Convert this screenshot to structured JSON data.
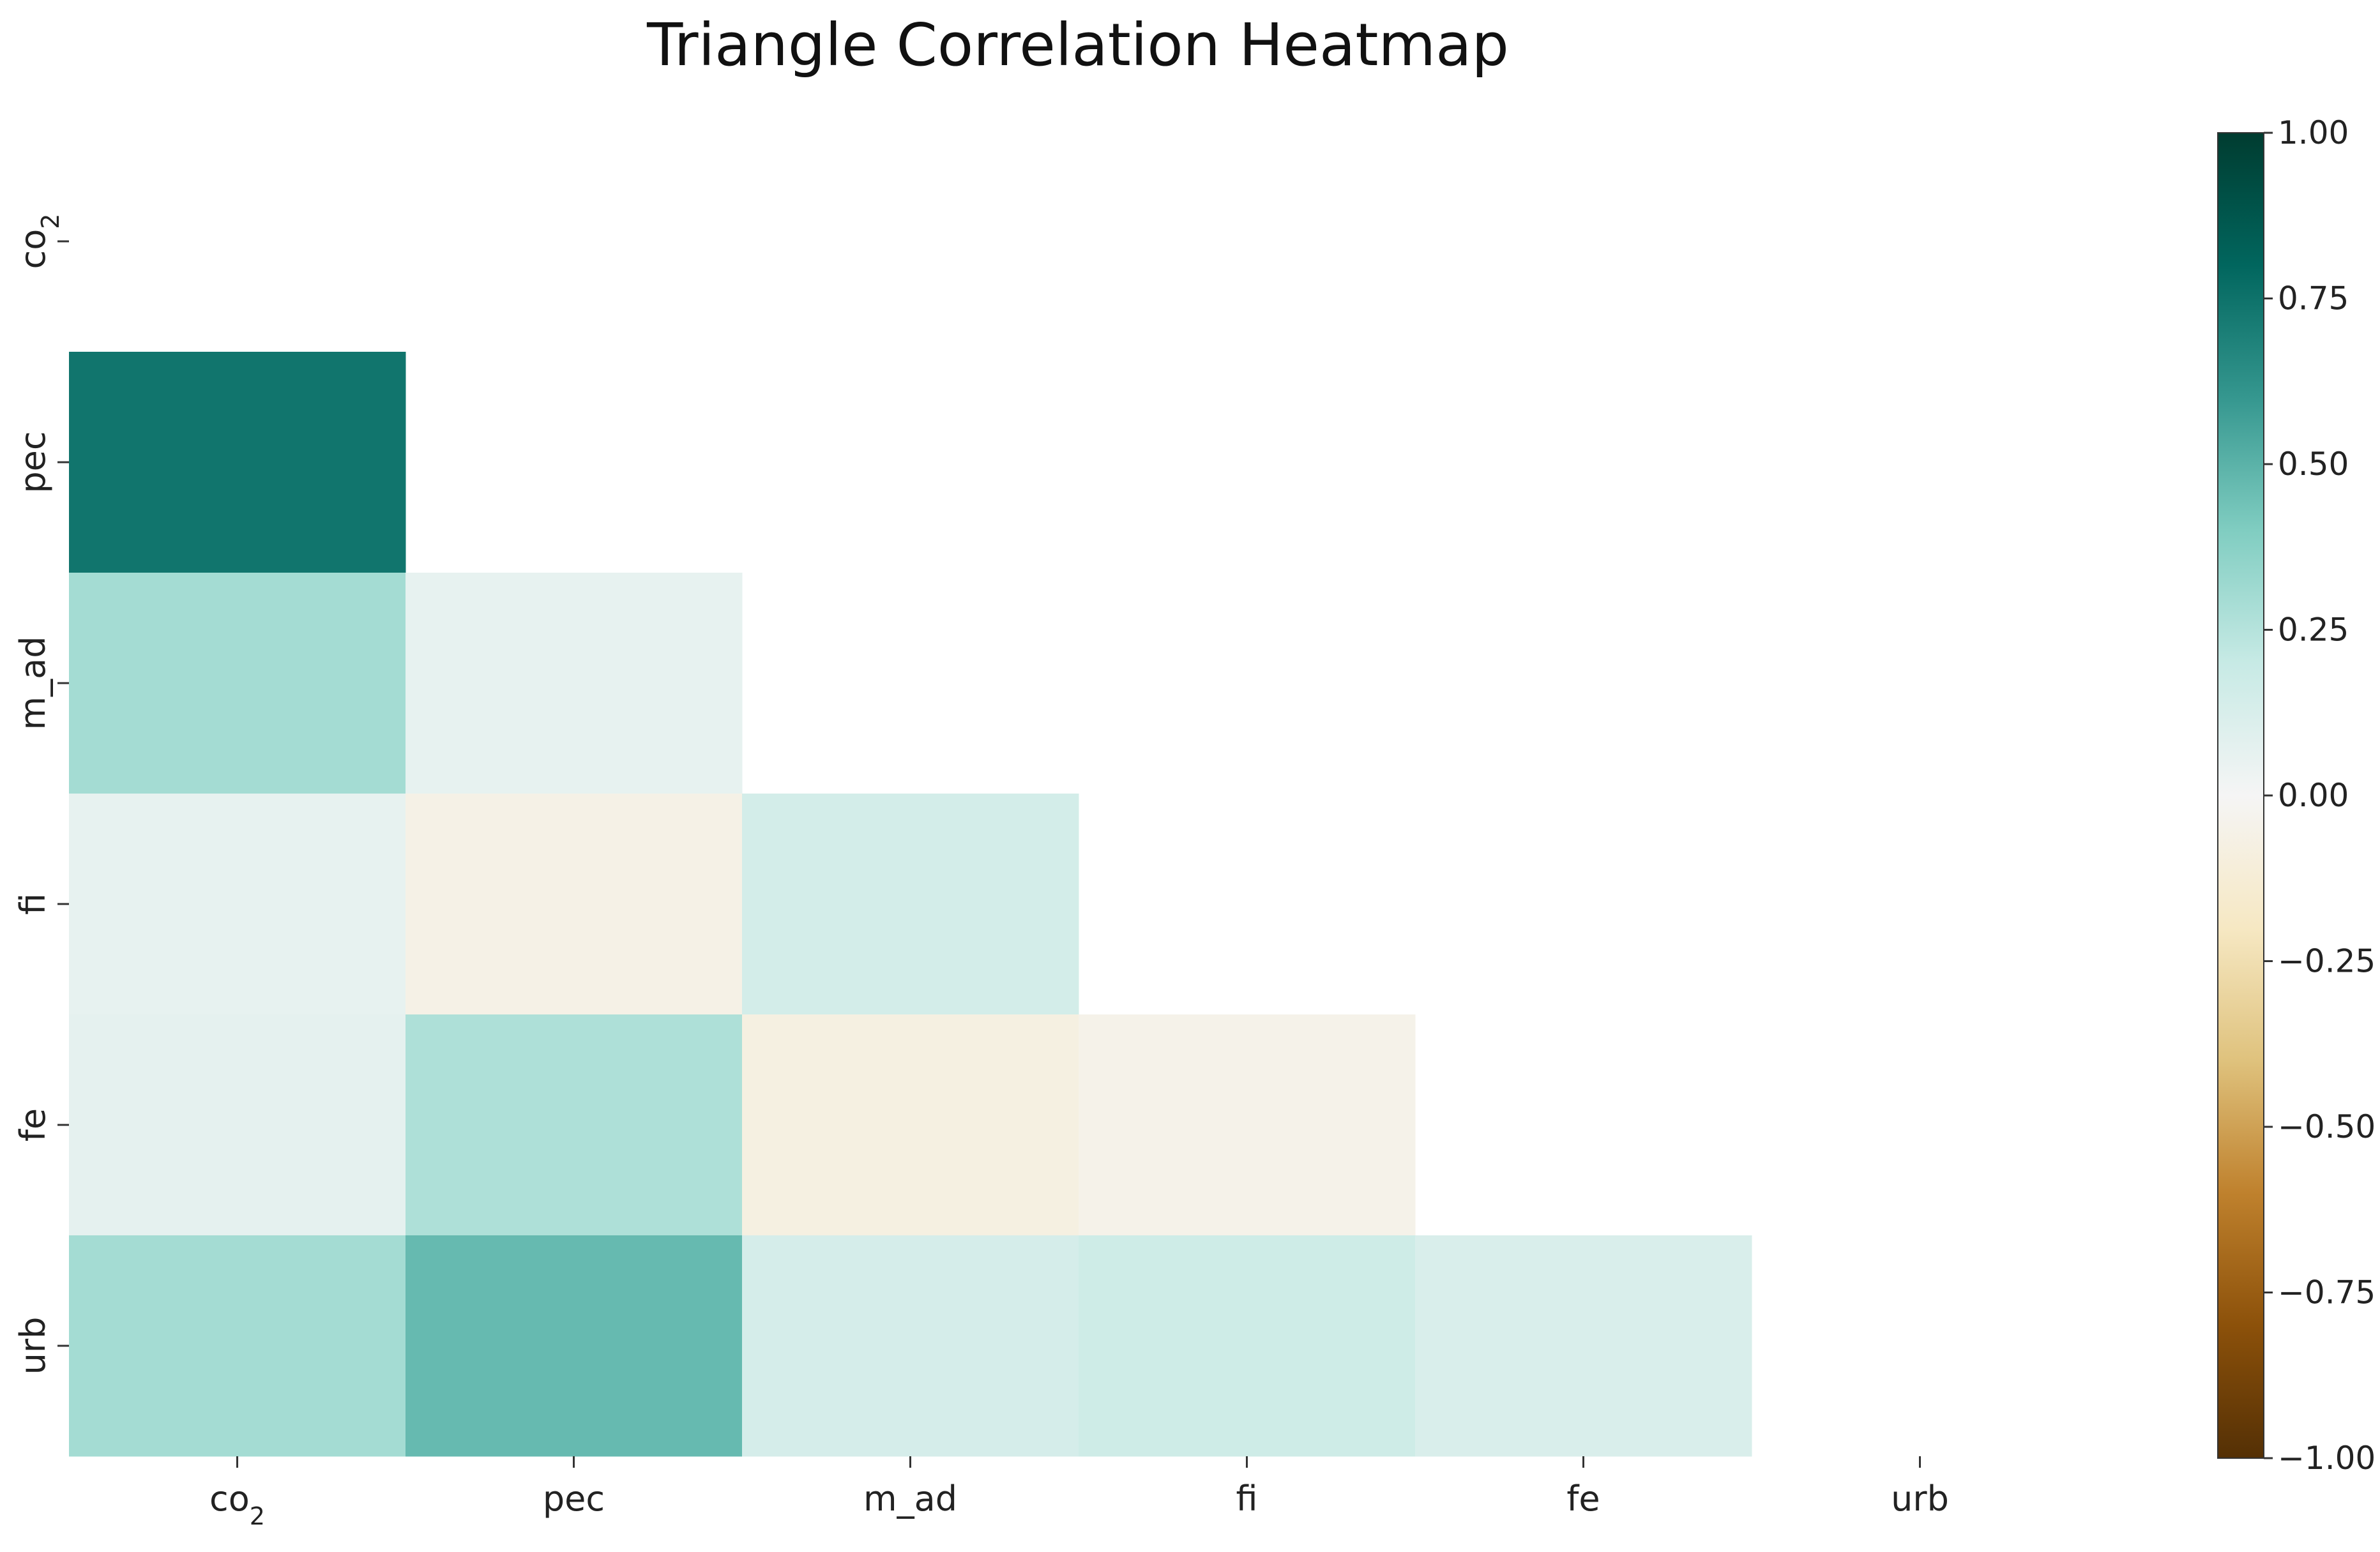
{
  "chart_data": {
    "type": "heatmap",
    "title": "Triangle Correlation Heatmap",
    "variables": [
      "co2",
      "pec",
      "m_ad",
      "fi",
      "fe",
      "urb"
    ],
    "x_tick_labels": [
      {
        "base": "co",
        "sub": "2"
      },
      {
        "base": "pec",
        "sub": ""
      },
      {
        "base": "m_ad",
        "sub": ""
      },
      {
        "base": "fi",
        "sub": ""
      },
      {
        "base": "fe",
        "sub": ""
      },
      {
        "base": "urb",
        "sub": ""
      }
    ],
    "y_tick_labels": [
      {
        "base": "co",
        "sub": "2"
      },
      {
        "base": "pec",
        "sub": ""
      },
      {
        "base": "m_ad",
        "sub": ""
      },
      {
        "base": "fi",
        "sub": ""
      },
      {
        "base": "fe",
        "sub": ""
      },
      {
        "base": "urb",
        "sub": ""
      }
    ],
    "mask": "upper triangle including diagonal",
    "values": [
      [
        null,
        null,
        null,
        null,
        null,
        null
      ],
      [
        0.74,
        null,
        null,
        null,
        null,
        null
      ],
      [
        0.3,
        0.06,
        null,
        null,
        null,
        null
      ],
      [
        0.06,
        -0.06,
        0.15,
        null,
        null,
        null
      ],
      [
        0.07,
        0.27,
        -0.08,
        -0.05,
        null,
        null
      ],
      [
        0.3,
        0.47,
        0.14,
        0.17,
        0.12,
        null
      ]
    ],
    "colormap": "BrBG",
    "vmin": -1.0,
    "vmax": 1.0,
    "colorbar_ticks": [
      "1.00",
      "0.75",
      "0.50",
      "0.25",
      "0.00",
      "−0.25",
      "−0.50",
      "−0.75",
      "−1.00"
    ],
    "colorbar_tick_values": [
      1.0,
      0.75,
      0.5,
      0.25,
      0.0,
      -0.25,
      -0.5,
      -0.75,
      -1.0
    ],
    "colorbar_position": "right",
    "colors": {
      "text": "#222222",
      "background": "#ffffff"
    }
  }
}
